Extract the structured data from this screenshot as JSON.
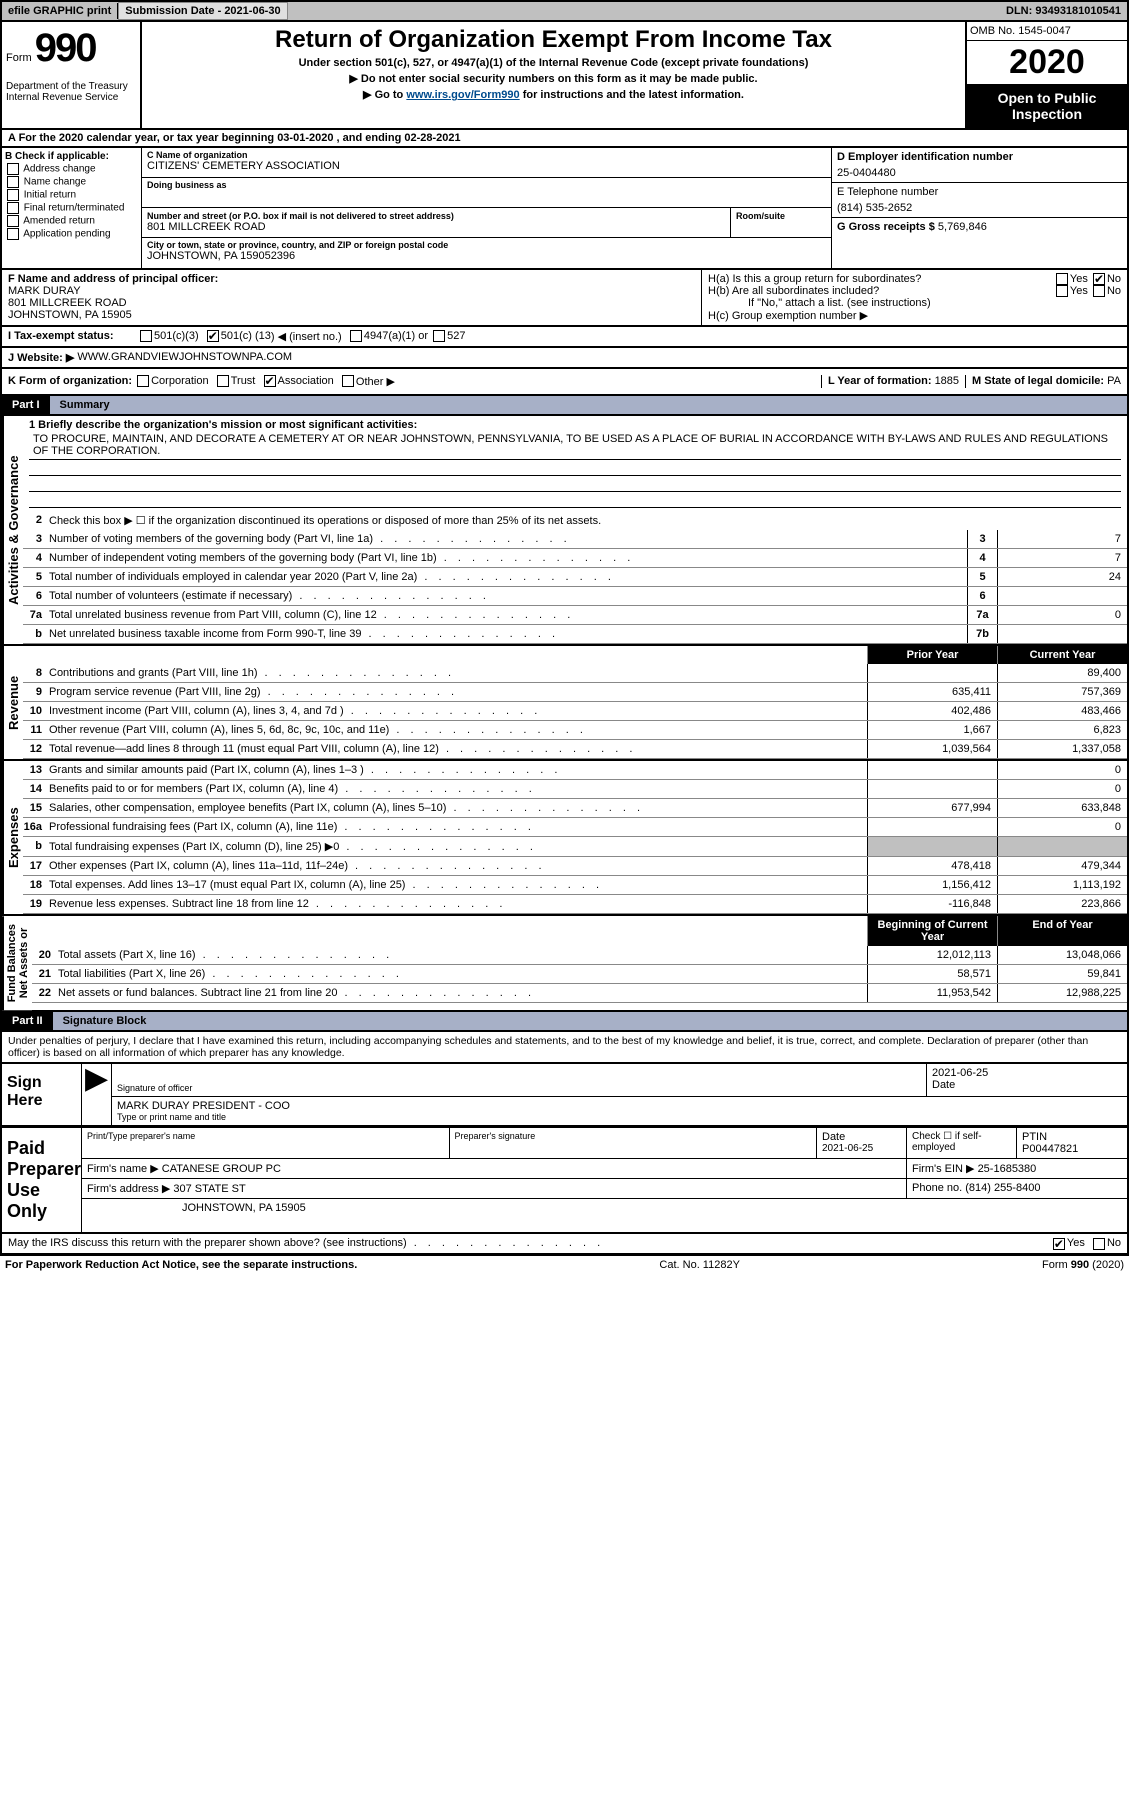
{
  "top": {
    "efile": "efile GRAPHIC print",
    "sub_lbl": "Submission Date - 2021-06-30",
    "dln": "DLN: 93493181010541"
  },
  "hdr": {
    "form": "Form",
    "num": "990",
    "title": "Return of Organization Exempt From Income Tax",
    "sub1": "Under section 501(c), 527, or 4947(a)(1) of the Internal Revenue Code (except private foundations)",
    "sub2": "▶ Do not enter social security numbers on this form as it may be made public.",
    "sub3_pre": "▶ Go to ",
    "sub3_link": "www.irs.gov/Form990",
    "sub3_post": " for instructions and the latest information.",
    "dept": "Department of the Treasury\nInternal Revenue Service",
    "omb": "OMB No. 1545-0047",
    "year": "2020",
    "inspect": "Open to Public Inspection"
  },
  "a_line": "A For the 2020 calendar year, or tax year beginning 03-01-2020    , and ending 02-28-2021",
  "b": {
    "hdr": "B Check if applicable:",
    "items": [
      "Address change",
      "Name change",
      "Initial return",
      "Final return/terminated",
      "Amended return",
      "Application pending"
    ]
  },
  "c": {
    "name_lbl": "C Name of organization",
    "name": "CITIZENS' CEMETERY ASSOCIATION",
    "dba_lbl": "Doing business as",
    "dba": "",
    "addr_lbl": "Number and street (or P.O. box if mail is not delivered to street address)",
    "addr": "801 MILLCREEK ROAD",
    "room_lbl": "Room/suite",
    "city_lbl": "City or town, state or province, country, and ZIP or foreign postal code",
    "city": "JOHNSTOWN, PA  159052396"
  },
  "d": {
    "lbl": "D Employer identification number",
    "val": "25-0404480"
  },
  "e": {
    "lbl": "E Telephone number",
    "val": "(814) 535-2652"
  },
  "g": {
    "lbl": "G Gross receipts $ ",
    "val": "5,769,846"
  },
  "f": {
    "lbl": "F  Name and address of principal officer:",
    "name": "MARK DURAY",
    "addr1": "801 MILLCREEK ROAD",
    "addr2": "JOHNSTOWN, PA  15905"
  },
  "h": {
    "a_lbl": "H(a)  Is this a group return for subordinates?",
    "b_lbl": "H(b)  Are all subordinates included?",
    "note": "If \"No,\" attach a list. (see instructions)",
    "c_lbl": "H(c)  Group exemption number ▶"
  },
  "i": {
    "lbl": "I    Tax-exempt status:",
    "o1": "501(c)(3)",
    "o2_pre": "501(c) (",
    "o2_val": "13",
    "o2_post": ") ◀ (insert no.)",
    "o3": "4947(a)(1) or",
    "o4": "527"
  },
  "j": {
    "lbl": "J    Website: ▶",
    "val": "WWW.GRANDVIEWJOHNSTOWNPA.COM"
  },
  "k": {
    "lbl": "K Form of organization:",
    "o": [
      "Corporation",
      "Trust",
      "Association",
      "Other ▶"
    ]
  },
  "l": {
    "lbl": "L Year of formation:",
    "val": "1885"
  },
  "m": {
    "lbl": "M State of legal domicile:",
    "val": "PA"
  },
  "parts": {
    "p1_n": "Part I",
    "p1_t": "Summary",
    "p2_n": "Part II",
    "p2_t": "Signature Block"
  },
  "summary": {
    "l1_lbl": "1  Briefly describe the organization's mission or most significant activities:",
    "l1_txt": "TO PROCURE, MAINTAIN, AND DECORATE A CEMETERY AT OR NEAR JOHNSTOWN, PENNSYLVANIA, TO BE USED AS A PLACE OF BURIAL IN ACCORDANCE WITH BY-LAWS AND RULES AND REGULATIONS OF THE CORPORATION.",
    "l2": "Check this box ▶ ☐  if the organization discontinued its operations or disposed of more than 25% of its net assets.",
    "rows_gov": [
      {
        "n": "3",
        "t": "Number of voting members of the governing body (Part VI, line 1a)",
        "b": "3",
        "v": "7"
      },
      {
        "n": "4",
        "t": "Number of independent voting members of the governing body (Part VI, line 1b)",
        "b": "4",
        "v": "7"
      },
      {
        "n": "5",
        "t": "Total number of individuals employed in calendar year 2020 (Part V, line 2a)",
        "b": "5",
        "v": "24"
      },
      {
        "n": "6",
        "t": "Total number of volunteers (estimate if necessary)",
        "b": "6",
        "v": ""
      },
      {
        "n": "7a",
        "t": "Total unrelated business revenue from Part VIII, column (C), line 12",
        "b": "7a",
        "v": "0"
      },
      {
        "n": "b",
        "t": "Net unrelated business taxable income from Form 990-T, line 39",
        "b": "7b",
        "v": ""
      }
    ],
    "col_prior": "Prior Year",
    "col_curr": "Current Year",
    "rows_rev": [
      {
        "n": "8",
        "t": "Contributions and grants (Part VIII, line 1h)",
        "p": "",
        "c": "89,400"
      },
      {
        "n": "9",
        "t": "Program service revenue (Part VIII, line 2g)",
        "p": "635,411",
        "c": "757,369"
      },
      {
        "n": "10",
        "t": "Investment income (Part VIII, column (A), lines 3, 4, and 7d )",
        "p": "402,486",
        "c": "483,466"
      },
      {
        "n": "11",
        "t": "Other revenue (Part VIII, column (A), lines 5, 6d, 8c, 9c, 10c, and 11e)",
        "p": "1,667",
        "c": "6,823"
      },
      {
        "n": "12",
        "t": "Total revenue—add lines 8 through 11 (must equal Part VIII, column (A), line 12)",
        "p": "1,039,564",
        "c": "1,337,058"
      }
    ],
    "rows_exp": [
      {
        "n": "13",
        "t": "Grants and similar amounts paid (Part IX, column (A), lines 1–3 )",
        "p": "",
        "c": "0"
      },
      {
        "n": "14",
        "t": "Benefits paid to or for members (Part IX, column (A), line 4)",
        "p": "",
        "c": "0"
      },
      {
        "n": "15",
        "t": "Salaries, other compensation, employee benefits (Part IX, column (A), lines 5–10)",
        "p": "677,994",
        "c": "633,848"
      },
      {
        "n": "16a",
        "t": "Professional fundraising fees (Part IX, column (A), line 11e)",
        "p": "",
        "c": "0"
      },
      {
        "n": "b",
        "t": "Total fundraising expenses (Part IX, column (D), line 25) ▶0",
        "p": "shade",
        "c": "shade"
      },
      {
        "n": "17",
        "t": "Other expenses (Part IX, column (A), lines 11a–11d, 11f–24e)",
        "p": "478,418",
        "c": "479,344"
      },
      {
        "n": "18",
        "t": "Total expenses. Add lines 13–17 (must equal Part IX, column (A), line 25)",
        "p": "1,156,412",
        "c": "1,113,192"
      },
      {
        "n": "19",
        "t": "Revenue less expenses. Subtract line 18 from line 12",
        "p": "-116,848",
        "c": "223,866"
      }
    ],
    "col_beg": "Beginning of Current Year",
    "col_end": "End of Year",
    "rows_net": [
      {
        "n": "20",
        "t": "Total assets (Part X, line 16)",
        "p": "12,012,113",
        "c": "13,048,066"
      },
      {
        "n": "21",
        "t": "Total liabilities (Part X, line 26)",
        "p": "58,571",
        "c": "59,841"
      },
      {
        "n": "22",
        "t": "Net assets or fund balances. Subtract line 21 from line 20",
        "p": "11,953,542",
        "c": "12,988,225"
      }
    ],
    "side_gov": "Activities & Governance",
    "side_rev": "Revenue",
    "side_exp": "Expenses",
    "side_net": "Net Assets or\nFund Balances"
  },
  "sig": {
    "penalty": "Under penalties of perjury, I declare that I have examined this return, including accompanying schedules and statements, and to the best of my knowledge and belief, it is true, correct, and complete. Declaration of preparer (other than officer) is based on all information of which preparer has any knowledge.",
    "sign_here": "Sign Here",
    "sig_of": "Signature of officer",
    "date": "2021-06-25",
    "date_lbl": "Date",
    "officer": "MARK DURAY  PRESIDENT - COO",
    "officer_lbl": "Type or print name and title",
    "paid": "Paid Preparer Use Only",
    "prep_name_lbl": "Print/Type preparer's name",
    "prep_sig_lbl": "Preparer's signature",
    "prep_date": "2021-06-25",
    "self_emp": "Check ☐ if self-employed",
    "ptin_lbl": "PTIN",
    "ptin": "P00447821",
    "firm_name_lbl": "Firm's name    ▶",
    "firm_name": "CATANESE GROUP PC",
    "firm_ein_lbl": "Firm's EIN ▶",
    "firm_ein": "25-1685380",
    "firm_addr_lbl": "Firm's address ▶",
    "firm_addr1": "307 STATE ST",
    "firm_addr2": "JOHNSTOWN, PA  15905",
    "phone_lbl": "Phone no.",
    "phone": "(814) 255-8400",
    "irs_q": "May the IRS discuss this return with the preparer shown above? (see instructions)"
  },
  "footer": {
    "left": "For Paperwork Reduction Act Notice, see the separate instructions.",
    "mid": "Cat. No. 11282Y",
    "right": "Form 990 (2020)"
  }
}
